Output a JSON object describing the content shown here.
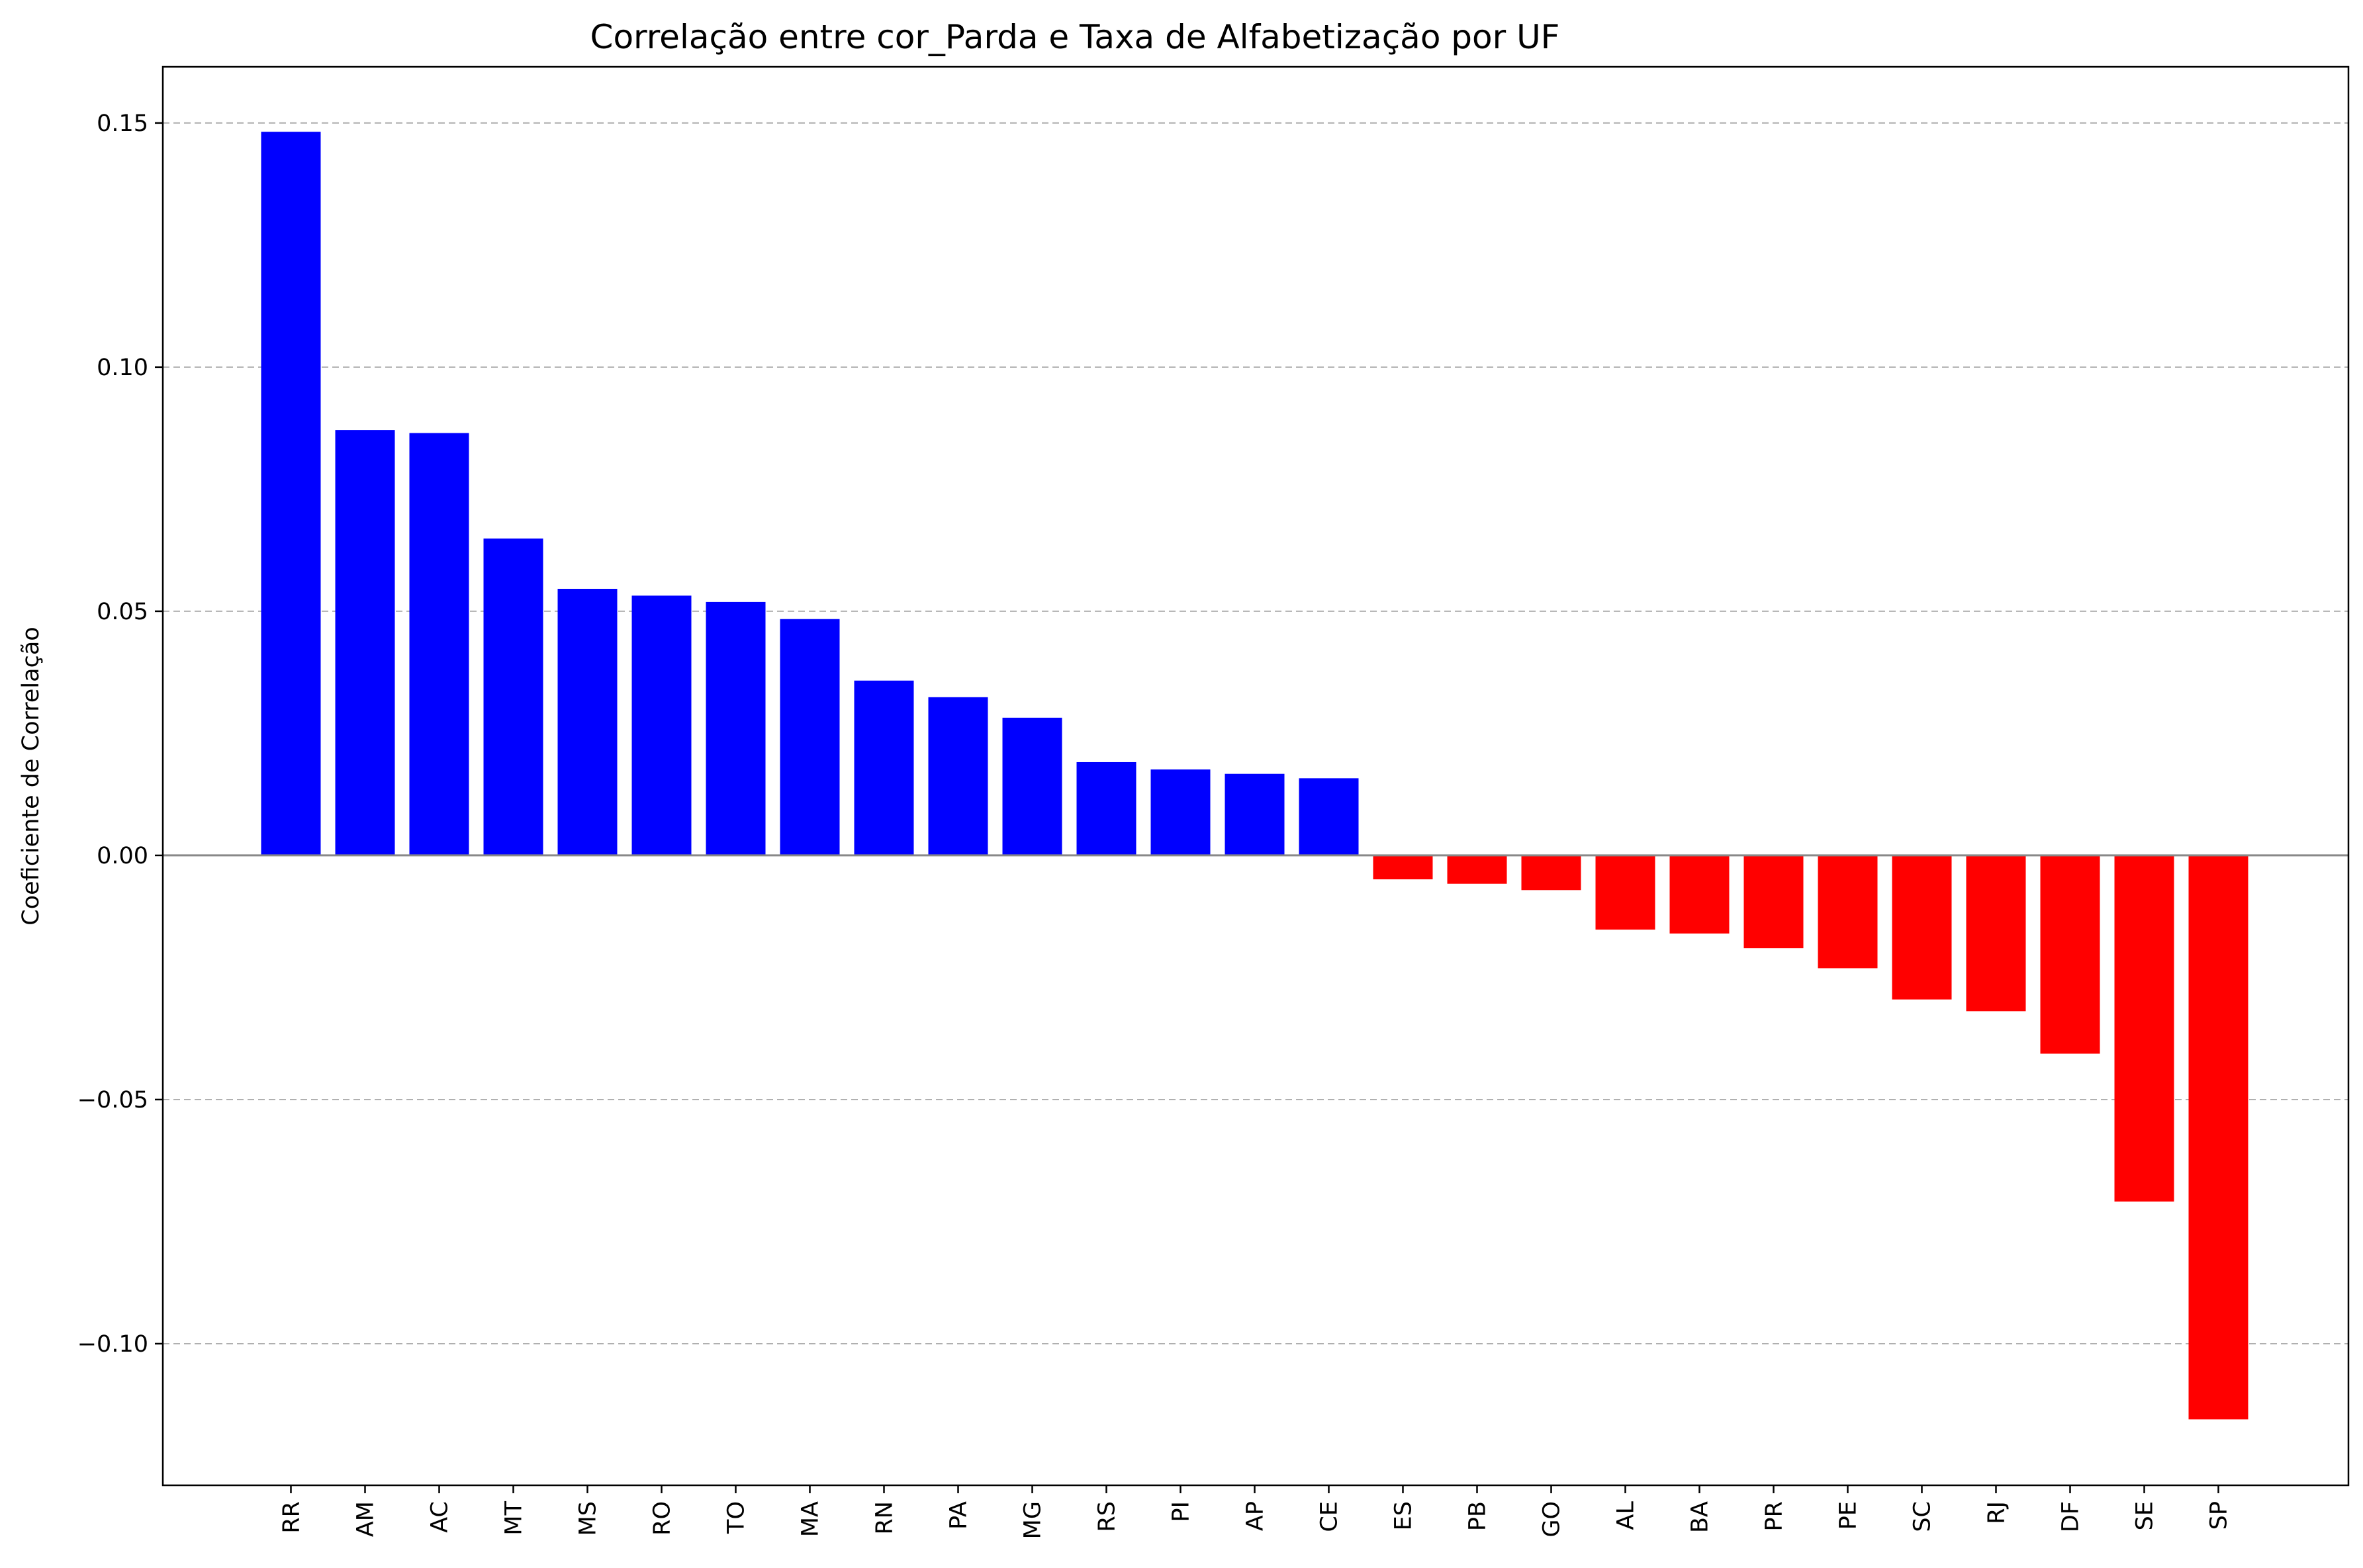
{
  "chart_data": {
    "type": "bar",
    "title": "Correlação entre cor_Parda e Taxa de Alfabetização por UF",
    "xlabel": "",
    "ylabel": "Coeficiente de Correlação",
    "categories": [
      "RR",
      "AM",
      "AC",
      "MT",
      "MS",
      "RO",
      "TO",
      "MA",
      "RN",
      "PA",
      "MG",
      "RS",
      "PI",
      "AP",
      "CE",
      "ES",
      "PB",
      "GO",
      "AL",
      "BA",
      "PR",
      "PE",
      "SC",
      "RJ",
      "DF",
      "SE",
      "SP"
    ],
    "values": [
      0.1482,
      0.0871,
      0.0865,
      0.0649,
      0.0546,
      0.0532,
      0.0519,
      0.0484,
      0.0358,
      0.0324,
      0.0282,
      0.0191,
      0.0176,
      0.0167,
      0.0158,
      -0.0049,
      -0.0058,
      -0.0071,
      -0.0152,
      -0.016,
      -0.019,
      -0.0231,
      -0.0295,
      -0.0319,
      -0.0406,
      -0.0709,
      -0.1155
    ],
    "positive_color": "#0000ff",
    "negative_color": "#ff0000",
    "ylim": [
      -0.129,
      0.1615
    ],
    "yticks": [
      0.15,
      0.1,
      0.05,
      0.0,
      -0.05,
      -0.1
    ],
    "ytick_labels": [
      "0.15",
      "0.10",
      "0.05",
      "0.00",
      "−0.05",
      "−0.10"
    ],
    "grid": true,
    "grid_axis": "y"
  }
}
